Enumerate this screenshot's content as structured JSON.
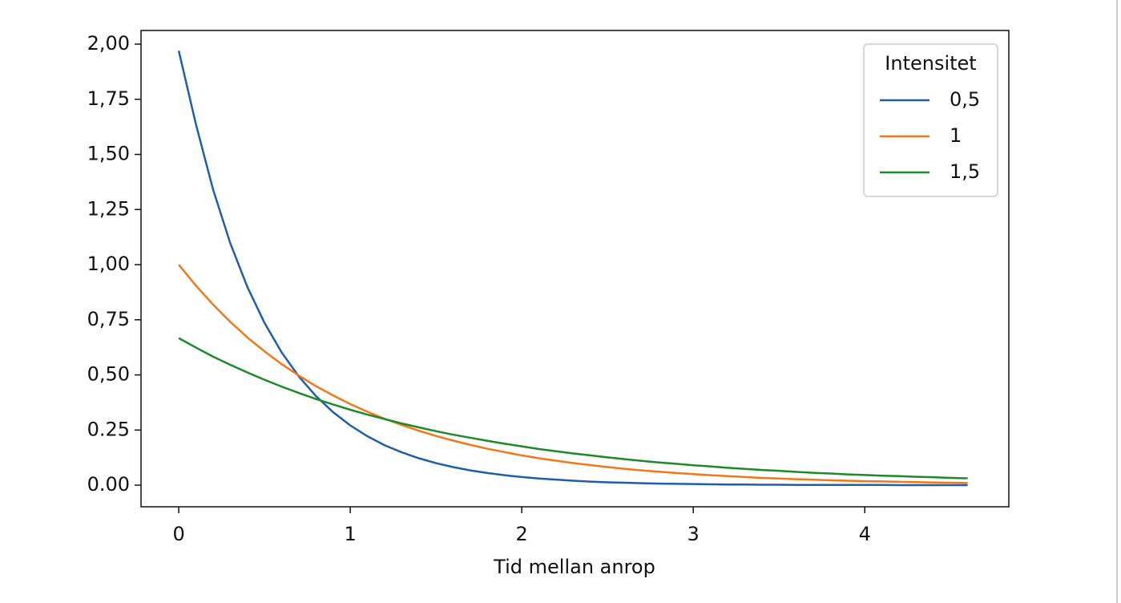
{
  "chart_data": {
    "type": "line",
    "xlabel": "Tid mellan anrop",
    "legend_title": "Intensitet",
    "legend": "upper right",
    "x": [
      0,
      0.1,
      0.2,
      0.3,
      0.4,
      0.5,
      0.6,
      0.7,
      0.8,
      0.9,
      1,
      1.1,
      1.2,
      1.3,
      1.4,
      1.5,
      1.6,
      1.7,
      1.8,
      1.9,
      2,
      2.1,
      2.2,
      2.3,
      2.4,
      2.5,
      2.6,
      2.7,
      2.8,
      2.9,
      3,
      3.1,
      3.2,
      3.3,
      3.4,
      3.5,
      3.6,
      3.7,
      3.8,
      3.9,
      4,
      4.1,
      4.2,
      4.3,
      4.4,
      4.5,
      4.6
    ],
    "series": [
      {
        "name": "0,5",
        "color": "#1f5fa8",
        "values": [
          1.97,
          1.637,
          1.341,
          1.098,
          0.899,
          0.736,
          0.602,
          0.493,
          0.404,
          0.331,
          0.271,
          0.222,
          0.181,
          0.149,
          0.122,
          0.1,
          0.082,
          0.067,
          0.055,
          0.045,
          0.037,
          0.03,
          0.025,
          0.02,
          0.016,
          0.013,
          0.011,
          0.009,
          0.007,
          0.006,
          0.005,
          0.004,
          0.003,
          0.003,
          0.002,
          0.002,
          0.001,
          0.001,
          0.001,
          0.001,
          0.001,
          0.001,
          0,
          0,
          0,
          0,
          0
        ]
      },
      {
        "name": "1",
        "color": "#f07818",
        "values": [
          1,
          0.905,
          0.819,
          0.741,
          0.67,
          0.607,
          0.549,
          0.497,
          0.449,
          0.407,
          0.368,
          0.333,
          0.301,
          0.273,
          0.247,
          0.223,
          0.202,
          0.183,
          0.165,
          0.15,
          0.135,
          0.122,
          0.111,
          0.1,
          0.091,
          0.082,
          0.074,
          0.067,
          0.061,
          0.055,
          0.05,
          0.045,
          0.041,
          0.037,
          0.033,
          0.03,
          0.027,
          0.025,
          0.022,
          0.02,
          0.018,
          0.017,
          0.015,
          0.014,
          0.012,
          0.011,
          0.01
        ]
      },
      {
        "name": "1,5",
        "color": "#1c8a26",
        "values": [
          0.667,
          0.624,
          0.583,
          0.546,
          0.511,
          0.478,
          0.447,
          0.418,
          0.391,
          0.366,
          0.342,
          0.32,
          0.3,
          0.28,
          0.262,
          0.245,
          0.229,
          0.215,
          0.201,
          0.188,
          0.176,
          0.164,
          0.154,
          0.144,
          0.135,
          0.126,
          0.118,
          0.11,
          0.103,
          0.097,
          0.09,
          0.085,
          0.079,
          0.074,
          0.069,
          0.065,
          0.06,
          0.056,
          0.053,
          0.049,
          0.046,
          0.043,
          0.041,
          0.038,
          0.036,
          0.033,
          0.031
        ]
      }
    ],
    "xlim": [
      -0.22,
      4.84
    ],
    "ylim": [
      -0.098,
      2.062
    ],
    "xticks": [
      0,
      1,
      2,
      3,
      4
    ],
    "yticks": [
      {
        "value": 0,
        "label": "0.00"
      },
      0.25,
      {
        "value": 0.5,
        "label": "0,50"
      },
      {
        "value": 0.75,
        "label": "0,75"
      },
      {
        "value": 1,
        "label": "1,00"
      },
      {
        "value": 1.25,
        "label": "1,25"
      },
      {
        "value": 1.5,
        "label": "1,50"
      },
      {
        "value": 1.75,
        "label": "1,75"
      },
      {
        "value": 2,
        "label": "2,00"
      }
    ],
    "grid": false
  }
}
